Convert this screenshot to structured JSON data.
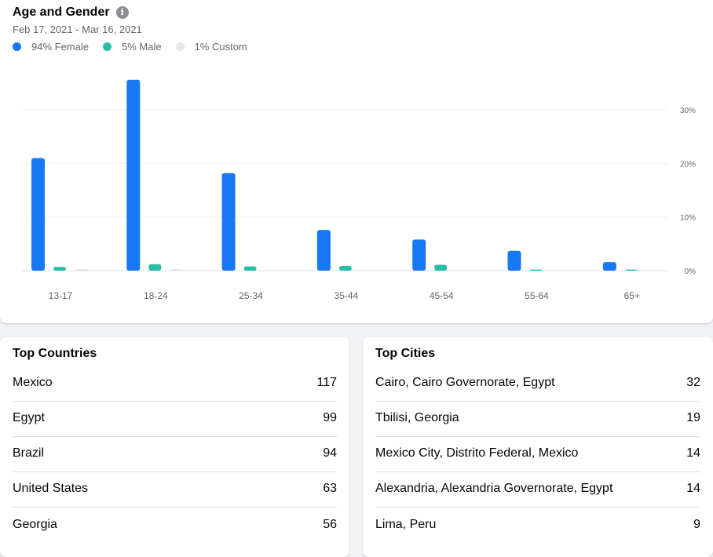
{
  "age_gender": {
    "title": "Age and Gender",
    "info_icon": "info-icon",
    "date_range": "Feb 17, 2021 - Mar 16, 2021",
    "legend": [
      {
        "label": "94% Female",
        "color": "#1877f2"
      },
      {
        "label": "5% Male",
        "color": "#2abba7"
      },
      {
        "label": "1% Custom",
        "color": "#e4e6eb"
      }
    ]
  },
  "chart_data": {
    "type": "bar",
    "categories": [
      "13-17",
      "18-24",
      "25-34",
      "35-44",
      "45-54",
      "55-64",
      "65+"
    ],
    "series": [
      {
        "name": "94% Female",
        "color": "#1877f2",
        "values": [
          21,
          35.6,
          18.2,
          7.6,
          5.8,
          3.7,
          1.6
        ]
      },
      {
        "name": "5% Male",
        "color": "#2abba7",
        "values": [
          0.7,
          1.2,
          0.8,
          0.9,
          1.1,
          0.2,
          0.2
        ]
      },
      {
        "name": "1% Custom",
        "color": "#e4e6eb",
        "values": [
          0.3,
          0.3,
          0,
          0,
          0,
          0,
          0
        ]
      }
    ],
    "yticks": [
      0,
      10,
      20,
      30
    ],
    "ytick_labels": [
      "0%",
      "10%",
      "20%",
      "30%"
    ],
    "ylim": [
      0,
      36
    ],
    "grid": true,
    "legend_position": "top-left",
    "y_axis_side": "right"
  },
  "top_countries": {
    "title": "Top Countries",
    "rows": [
      {
        "name": "Mexico",
        "value": "117"
      },
      {
        "name": "Egypt",
        "value": "99"
      },
      {
        "name": "Brazil",
        "value": "94"
      },
      {
        "name": "United States",
        "value": "63"
      },
      {
        "name": "Georgia",
        "value": "56"
      }
    ]
  },
  "top_cities": {
    "title": "Top Cities",
    "rows": [
      {
        "name": "Cairo, Cairo Governorate, Egypt",
        "value": "32"
      },
      {
        "name": "Tbilisi, Georgia",
        "value": "19"
      },
      {
        "name": "Mexico City, Distrito Federal, Mexico",
        "value": "14"
      },
      {
        "name": "Alexandria, Alexandria Governorate, Egypt",
        "value": "14"
      },
      {
        "name": "Lima, Peru",
        "value": "9"
      }
    ]
  }
}
